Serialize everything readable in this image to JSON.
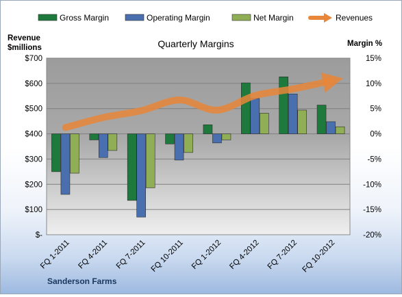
{
  "chart_data": {
    "type": "bar",
    "title": "Quarterly Margins",
    "source_label": "Sanderson Farms",
    "left_axis": {
      "label_line1": "Revenue",
      "label_line2": "$millions",
      "ylim": [
        0,
        700
      ],
      "ticks": [
        0,
        100,
        200,
        300,
        400,
        500,
        600,
        700
      ],
      "tick_labels": [
        "$-",
        "$100",
        "$200",
        "$300",
        "$400",
        "$500",
        "$600",
        "$700"
      ]
    },
    "right_axis": {
      "label": "Margin %",
      "ylim": [
        -20,
        15
      ],
      "ticks": [
        -20,
        -15,
        -10,
        -5,
        0,
        5,
        10,
        15
      ],
      "tick_labels": [
        "-20%",
        "-15%",
        "-10%",
        "-5%",
        "0%",
        "5%",
        "10%",
        "15%"
      ]
    },
    "categories": [
      "FQ 1-2011",
      "FQ 4-2011",
      "FQ 7-2011",
      "FQ 10-2011",
      "FQ 1-2012",
      "FQ 4-2012",
      "FQ 7-2012",
      "FQ 10-2012"
    ],
    "series": [
      {
        "name": "Gross Margin",
        "kind": "bar",
        "axis": "right",
        "color": "#1e7a3c",
        "values": [
          -7.5,
          -1.2,
          -13.2,
          -2.0,
          1.8,
          10.1,
          11.3,
          5.7
        ]
      },
      {
        "name": "Operating Margin",
        "kind": "bar",
        "axis": "right",
        "color": "#4a6fae",
        "values": [
          -12.0,
          -4.7,
          -16.5,
          -5.2,
          -1.8,
          7.0,
          7.9,
          2.4
        ]
      },
      {
        "name": "Net Margin",
        "kind": "bar",
        "axis": "right",
        "color": "#8fae55",
        "values": [
          -7.8,
          -3.3,
          -10.7,
          -3.7,
          -1.2,
          4.1,
          4.7,
          1.4
        ]
      },
      {
        "name": "Revenues",
        "kind": "line",
        "axis": "left",
        "color": "#e8863a",
        "values": [
          425,
          465,
          492,
          534,
          494,
          552,
          578,
          610
        ]
      }
    ],
    "legend_position": "top",
    "grid": true
  }
}
